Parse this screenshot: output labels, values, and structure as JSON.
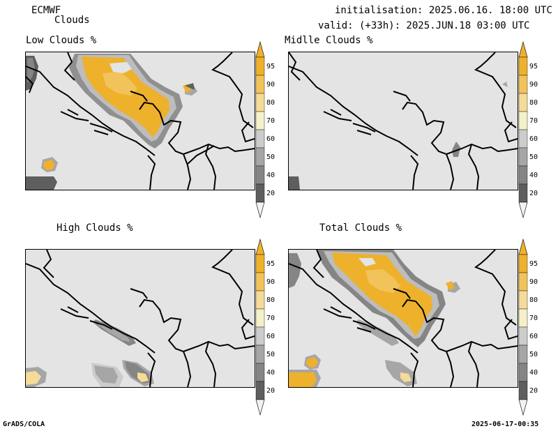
{
  "header": {
    "model": "ECMWF",
    "product": "Clouds",
    "init": "initialisation: 2025.06.16. 18:00 UTC",
    "valid": "valid: (+33h): 2025.JUN.18 03:00 UTC"
  },
  "panels": {
    "low": "Low Clouds %",
    "middle": "Midlle Clouds %",
    "high": "High Clouds %",
    "total": "Total Clouds %"
  },
  "colorbar": {
    "labels": [
      "95",
      "90",
      "80",
      "70",
      "60",
      "50",
      "40",
      "20"
    ],
    "colors": {
      "95": "#eeb12c",
      "90": "#f2c35a",
      "80": "#f5db98",
      "70": "#f4f1c8",
      "60": "#cccccc",
      "50": "#a6a6a6",
      "40": "#858585",
      "20": "#5e5e5e",
      "below": "#f3f3f3",
      "background": "#e4e4e4"
    }
  },
  "footer": {
    "left": "GrADS/COLA",
    "right": "2025-06-17-00:35"
  }
}
